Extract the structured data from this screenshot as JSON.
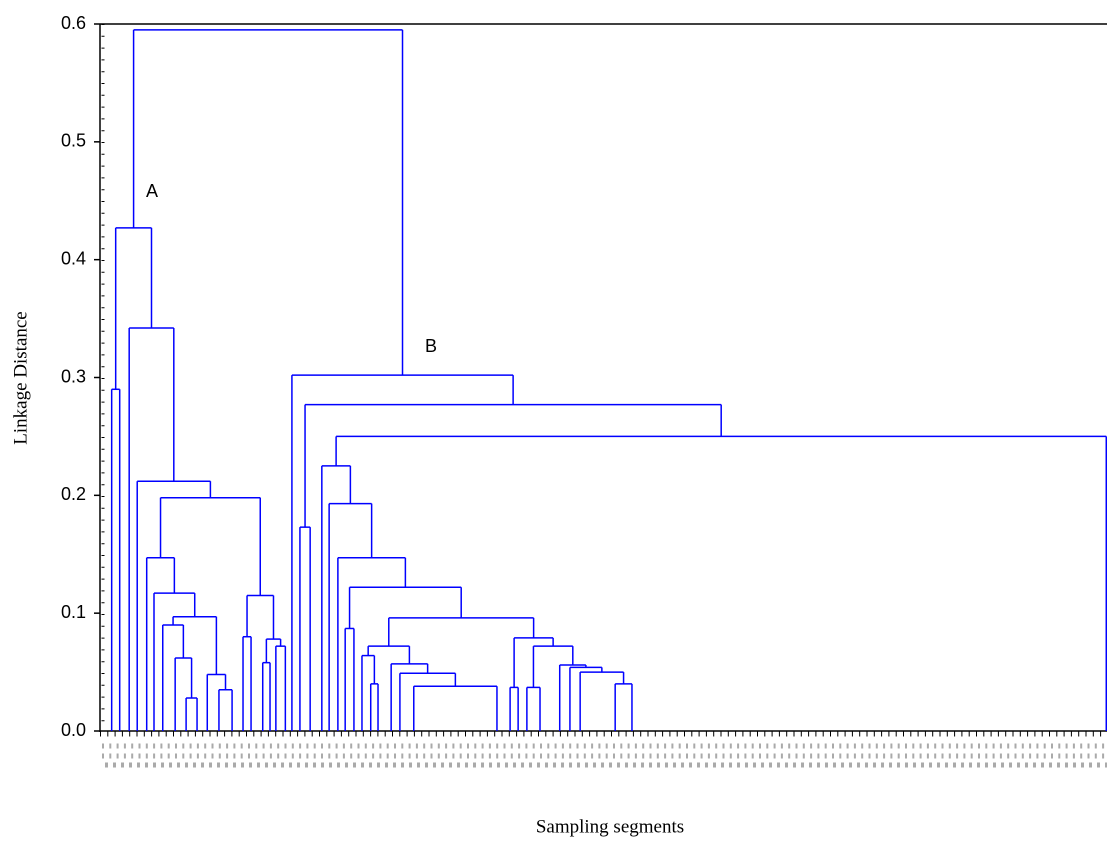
{
  "chart_data": {
    "type": "dendrogram",
    "ylabel": "Linkage Distance",
    "xlabel": "Sampling segments",
    "annotations": [
      "A",
      "B"
    ],
    "color": "#0000ff",
    "xlim": [
      0,
      138
    ],
    "ylim": [
      0,
      0.6
    ],
    "yticks": [
      {
        "value": 0,
        "label": "0.0"
      },
      0.1,
      0.2,
      0.3,
      0.4,
      0.5,
      0.6
    ],
    "tree": {
      "height": 0.595,
      "children": [
        {
          "height": 0.427,
          "children": [
            {
              "height": 0.29,
              "children": [
                1.6,
                2.7
              ]
            },
            {
              "height": 0.342,
              "children": [
                4.0,
                {
                  "height": 0.212,
                  "children": [
                    5.1,
                    {
                      "height": 0.198,
                      "children": [
                        {
                          "height": 0.147,
                          "children": [
                            6.4,
                            {
                              "height": 0.117,
                              "children": [
                                7.4,
                                {
                                  "height": 0.097,
                                  "children": [
                                    {
                                      "height": 0.09,
                                      "children": [
                                        8.6,
                                        {
                                          "height": 0.062,
                                          "children": [
                                            10.3,
                                            {
                                              "height": 0.028,
                                              "children": [
                                                11.8,
                                                13.3
                                              ]
                                            }
                                          ]
                                        }
                                      ]
                                    },
                                    {
                                      "height": 0.048,
                                      "children": [
                                        14.7,
                                        {
                                          "height": 0.035,
                                          "children": [
                                            16.3,
                                            18.1
                                          ]
                                        }
                                      ]
                                    }
                                  ]
                                }
                              ]
                            }
                          ]
                        },
                        {
                          "height": 0.115,
                          "children": [
                            {
                              "height": 0.08,
                              "children": [
                                19.6,
                                20.7
                              ]
                            },
                            {
                              "height": 0.078,
                              "children": [
                                {
                                  "height": 0.058,
                                  "children": [
                                    22.3,
                                    23.3
                                  ]
                                },
                                {
                                  "height": 0.072,
                                  "children": [
                                    24.1,
                                    25.4
                                  ]
                                }
                              ]
                            }
                          ]
                        }
                      ]
                    }
                  ]
                }
              ]
            }
          ]
        },
        {
          "height": 0.302,
          "children": [
            26.3,
            {
              "height": 0.277,
              "children": [
                {
                  "height": 0.173,
                  "children": [
                    27.4,
                    28.8
                  ]
                },
                {
                  "height": 0.25,
                  "children": [
                    {
                      "height": 0.225,
                      "children": [
                        30.4,
                        {
                          "height": 0.193,
                          "children": [
                            31.4,
                            {
                              "height": 0.147,
                              "children": [
                                32.6,
                                {
                                  "height": 0.122,
                                  "children": [
                                    {
                                      "height": 0.087,
                                      "children": [
                                        33.6,
                                        34.8
                                      ]
                                    },
                                    {
                                      "height": 0.096,
                                      "children": [
                                        {
                                          "height": 0.072,
                                          "children": [
                                            {
                                              "height": 0.064,
                                              "children": [
                                                35.9,
                                                {
                                                  "height": 0.04,
                                                  "children": [
                                                    37.1,
                                                    38.1
                                                  ]
                                                }
                                              ]
                                            },
                                            {
                                              "height": 0.057,
                                              "children": [
                                                39.9,
                                                {
                                                  "height": 0.049,
                                                  "children": [
                                                    41.1,
                                                    {
                                                      "height": 0.038,
                                                      "children": [
                                                        43.0,
                                                        54.4
                                                      ]
                                                    }
                                                  ]
                                                }
                                              ]
                                            }
                                          ]
                                        },
                                        {
                                          "height": 0.079,
                                          "children": [
                                            {
                                              "height": 0.037,
                                              "children": [
                                                56.2,
                                                57.3
                                              ]
                                            },
                                            {
                                              "height": 0.072,
                                              "children": [
                                                {
                                                  "height": 0.037,
                                                  "children": [
                                                    58.5,
                                                    60.3
                                                  ]
                                                },
                                                {
                                                  "height": 0.056,
                                                  "children": [
                                                    63.0,
                                                    {
                                                      "height": 0.054,
                                                      "children": [
                                                        64.4,
                                                        {
                                                          "height": 0.05,
                                                          "children": [
                                                            65.8,
                                                            {
                                                              "height": 0.04,
                                                              "children": [
                                                                70.6,
                                                                72.9
                                                              ]
                                                            }
                                                          ]
                                                        }
                                                      ]
                                                    }
                                                  ]
                                                }
                                              ]
                                            }
                                          ]
                                        }
                                      ]
                                    }
                                  ]
                                }
                              ]
                            }
                          ]
                        }
                      ]
                    },
                    137.9
                  ]
                }
              ]
            }
          ]
        }
      ]
    }
  }
}
